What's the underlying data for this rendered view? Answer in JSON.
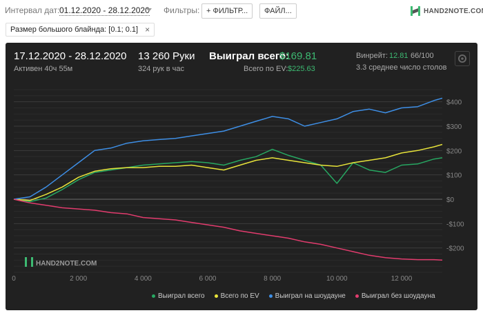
{
  "toolbar": {
    "date_label": "Интервал дат:",
    "date_value": "01.12.2020 - 28.12.2020",
    "filters_label": "Фильтры:",
    "filter_button": "+ ФИЛЬТР...",
    "file_button": "ФАЙЛ..."
  },
  "logo": {
    "text": "HAND2NOTE.COM"
  },
  "chip": {
    "text": "Размер большого блайнда: [0.1; 0.1]",
    "close": "×"
  },
  "summary": {
    "range": "17.12.2020 - 28.12.2020",
    "active": "Активен 40ч 55м",
    "hands": "13 260 Руки",
    "hands_per_hour": "324 рук в час",
    "won_label": "Выиграл всего:",
    "won_value": "$169.81",
    "ev_label": "Всего по EV:",
    "ev_value": "$225.63",
    "winrate_label": "Винрейт:",
    "winrate_value": "12.81",
    "winrate_total": "66/100",
    "tables": "3.3 среднее число столов"
  },
  "colors": {
    "won": "#27a862",
    "ev": "#e8e43a",
    "showdown": "#3e8fe6",
    "no_showdown": "#e33c6e"
  },
  "chart_data": {
    "type": "line",
    "watermark": "HAND2NOTE.COM",
    "xlim": [
      0,
      13260
    ],
    "ylim": [
      -300,
      450
    ],
    "x_ticks": [
      0,
      2000,
      4000,
      6000,
      8000,
      10000,
      12000
    ],
    "x_tick_labels": [
      "0",
      "2 000",
      "4 000",
      "6 000",
      "8 000",
      "10 000",
      "12 000"
    ],
    "y_ticks": [
      400,
      300,
      200,
      100,
      0,
      -100,
      -200
    ],
    "y_tick_labels": [
      "$400",
      "$300",
      "$200",
      "$100",
      "$0",
      "-$100",
      "-$200"
    ],
    "x": [
      0,
      500,
      1000,
      1500,
      2000,
      2500,
      3000,
      3500,
      4000,
      4500,
      5000,
      5500,
      6000,
      6500,
      7000,
      7500,
      8000,
      8500,
      9000,
      9500,
      10000,
      10500,
      11000,
      11500,
      12000,
      12500,
      13000,
      13260
    ],
    "series": [
      {
        "name": "Выиграл всего",
        "key": "won",
        "values": [
          0,
          -10,
          5,
          40,
          80,
          110,
          120,
          130,
          140,
          145,
          150,
          155,
          150,
          140,
          160,
          175,
          205,
          180,
          160,
          140,
          65,
          150,
          120,
          110,
          140,
          145,
          165,
          170
        ]
      },
      {
        "name": "Всего по EV",
        "key": "ev",
        "values": [
          0,
          -5,
          20,
          50,
          90,
          115,
          125,
          130,
          130,
          135,
          135,
          140,
          130,
          120,
          140,
          160,
          170,
          160,
          150,
          140,
          135,
          150,
          160,
          170,
          190,
          200,
          215,
          225
        ]
      },
      {
        "name": "Выиграл на шоудауне",
        "key": "showdown",
        "values": [
          0,
          10,
          50,
          100,
          150,
          200,
          210,
          230,
          240,
          245,
          250,
          260,
          270,
          280,
          300,
          320,
          340,
          330,
          300,
          315,
          330,
          360,
          370,
          355,
          375,
          380,
          405,
          415
        ]
      },
      {
        "name": "Выиграл без шоудауна",
        "key": "no_showdown",
        "values": [
          0,
          -15,
          -25,
          -35,
          -40,
          -45,
          -55,
          -60,
          -75,
          -80,
          -85,
          -95,
          -105,
          -115,
          -130,
          -140,
          -150,
          -160,
          -175,
          -185,
          -200,
          -215,
          -230,
          -240,
          -245,
          -248,
          -248,
          -250
        ]
      }
    ]
  }
}
